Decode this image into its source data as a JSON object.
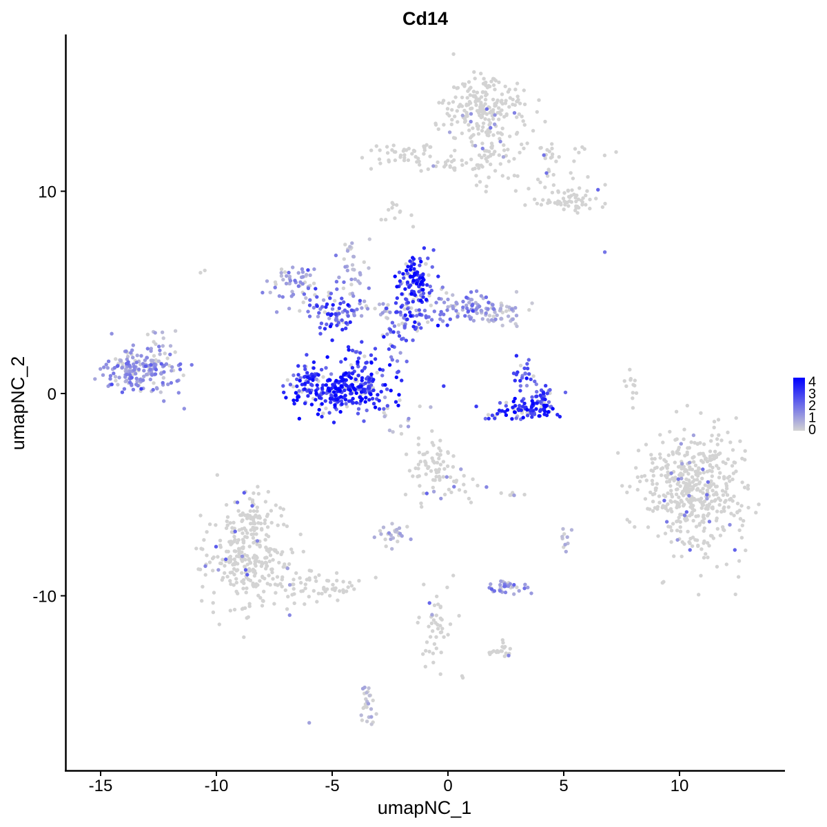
{
  "chart_data": {
    "type": "scatter",
    "title": "Cd14",
    "xlabel": "umapNC_1",
    "ylabel": "umapNC_2",
    "xlim": [
      -16.5,
      14.5
    ],
    "ylim": [
      -18.5,
      17.5
    ],
    "xticks": [
      -15,
      -10,
      -5,
      0,
      5,
      10
    ],
    "xtick_labels": [
      "-15",
      "-10",
      "-5",
      "0",
      "5",
      "10"
    ],
    "yticks": [
      -10,
      0,
      10
    ],
    "ytick_labels": [
      "-10",
      "0",
      "10"
    ],
    "grid": false,
    "legend": {
      "placement": "right",
      "title": "",
      "values": [
        4,
        3,
        2,
        1,
        0
      ],
      "labels": [
        "4",
        "3",
        "2",
        "1",
        "0"
      ]
    },
    "color_scale": {
      "low": "#d3d3d3",
      "high": "#0000ff",
      "min": 0,
      "max": 4.2
    },
    "clusters": [
      {
        "x": 1.7,
        "y": 14.1,
        "sx": 0.9,
        "sy": 0.9,
        "n": 220,
        "expr": 0.05
      },
      {
        "x": 1.8,
        "y": 12.0,
        "sx": 0.3,
        "sy": 0.8,
        "n": 30,
        "expr": 0.05
      },
      {
        "x": -1.6,
        "y": 11.8,
        "sx": 1.0,
        "sy": 0.3,
        "n": 50,
        "expr": 0.1
      },
      {
        "x": 0.3,
        "y": 11.2,
        "sx": 1.0,
        "sy": 0.15,
        "n": 20,
        "expr": 0.1
      },
      {
        "x": 4.3,
        "y": 11.9,
        "sx": 1.3,
        "sy": 0.3,
        "n": 30,
        "expr": 0.15
      },
      {
        "x": 5.2,
        "y": 9.6,
        "sx": 0.8,
        "sy": 0.4,
        "n": 60,
        "expr": 0.15
      },
      {
        "x": 3.3,
        "y": 10.7,
        "sx": 1.0,
        "sy": 0.4,
        "n": 20,
        "expr": 0.1
      },
      {
        "x": -6.8,
        "y": 5.6,
        "sx": 0.5,
        "sy": 0.5,
        "n": 45,
        "expr": 1.2
      },
      {
        "x": -5.6,
        "y": 4.6,
        "sx": 0.7,
        "sy": 0.5,
        "n": 35,
        "expr": 1.6
      },
      {
        "x": -4.8,
        "y": 3.8,
        "sx": 0.4,
        "sy": 0.4,
        "n": 50,
        "expr": 2.6
      },
      {
        "x": -3.5,
        "y": 4.2,
        "sx": 0.7,
        "sy": 0.3,
        "n": 25,
        "expr": 0.8
      },
      {
        "x": -4.2,
        "y": 6.0,
        "sx": 0.5,
        "sy": 0.7,
        "n": 20,
        "expr": 0.9
      },
      {
        "x": -3.8,
        "y": 1.2,
        "sx": 0.3,
        "sy": 0.8,
        "n": 40,
        "expr": 3.0
      },
      {
        "x": -4.5,
        "y": 0.1,
        "sx": 1.1,
        "sy": 0.55,
        "n": 260,
        "expr": 3.3
      },
      {
        "x": -6.0,
        "y": 0.6,
        "sx": 0.3,
        "sy": 0.5,
        "n": 40,
        "expr": 3.0
      },
      {
        "x": -1.3,
        "y": 5.6,
        "sx": 0.45,
        "sy": 0.6,
        "n": 100,
        "expr": 3.3
      },
      {
        "x": -1.5,
        "y": 3.9,
        "sx": 0.6,
        "sy": 0.6,
        "n": 70,
        "expr": 2.4
      },
      {
        "x": -2.3,
        "y": 2.9,
        "sx": 0.3,
        "sy": 0.9,
        "n": 25,
        "expr": 2.0
      },
      {
        "x": 0.7,
        "y": 4.3,
        "sx": 0.8,
        "sy": 0.4,
        "n": 70,
        "expr": 1.4
      },
      {
        "x": 2.2,
        "y": 4.0,
        "sx": 0.5,
        "sy": 0.4,
        "n": 55,
        "expr": 0.5
      },
      {
        "x": 3.4,
        "y": -0.8,
        "sx": 0.8,
        "sy": 0.25,
        "n": 90,
        "expr": 3.3
      },
      {
        "x": 3.3,
        "y": 0.9,
        "sx": 0.3,
        "sy": 0.5,
        "n": 25,
        "expr": 2.6
      },
      {
        "x": 4.1,
        "y": -0.2,
        "sx": 0.3,
        "sy": 0.4,
        "n": 25,
        "expr": 2.8
      },
      {
        "x": -13.3,
        "y": 1.1,
        "sx": 0.8,
        "sy": 0.6,
        "n": 190,
        "expr": 1.2
      },
      {
        "x": -12.4,
        "y": 2.0,
        "sx": 0.4,
        "sy": 0.5,
        "n": 15,
        "expr": 0.5
      },
      {
        "x": 10.6,
        "y": -4.8,
        "sx": 1.1,
        "sy": 1.5,
        "n": 480,
        "expr": 0.06
      },
      {
        "x": -0.6,
        "y": -3.6,
        "sx": 0.5,
        "sy": 0.6,
        "n": 70,
        "expr": 0.15
      },
      {
        "x": 0.8,
        "y": -4.7,
        "sx": 0.4,
        "sy": 0.5,
        "n": 15,
        "expr": 0.1
      },
      {
        "x": -8.6,
        "y": -8.1,
        "sx": 0.9,
        "sy": 1.2,
        "n": 280,
        "expr": 0.25
      },
      {
        "x": -8.5,
        "y": -5.8,
        "sx": 0.4,
        "sy": 0.6,
        "n": 40,
        "expr": 0.2
      },
      {
        "x": -5.6,
        "y": -9.6,
        "sx": 1.0,
        "sy": 0.4,
        "n": 60,
        "expr": 0.15
      },
      {
        "x": -2.3,
        "y": -6.9,
        "sx": 0.3,
        "sy": 0.25,
        "n": 25,
        "expr": 0.5
      },
      {
        "x": 2.5,
        "y": -9.6,
        "sx": 0.4,
        "sy": 0.2,
        "n": 35,
        "expr": 1.2
      },
      {
        "x": -0.5,
        "y": -11.3,
        "sx": 0.3,
        "sy": 0.9,
        "n": 45,
        "expr": 0.15
      },
      {
        "x": 2.3,
        "y": -12.7,
        "sx": 0.3,
        "sy": 0.2,
        "n": 20,
        "expr": 0.1
      },
      {
        "x": -3.5,
        "y": -15.5,
        "sx": 0.15,
        "sy": 0.6,
        "n": 25,
        "expr": 0.3
      },
      {
        "x": -2.1,
        "y": 8.8,
        "sx": 0.3,
        "sy": 0.3,
        "n": 12,
        "expr": 0.15
      },
      {
        "x": -4.2,
        "y": 7.0,
        "sx": 0.15,
        "sy": 0.4,
        "n": 10,
        "expr": 0.3
      },
      {
        "x": 8.0,
        "y": 0.4,
        "sx": 0.15,
        "sy": 0.5,
        "n": 12,
        "expr": 0.2
      },
      {
        "x": 5.1,
        "y": -7.3,
        "sx": 0.15,
        "sy": 0.3,
        "n": 10,
        "expr": 0.5
      },
      {
        "x": -1.9,
        "y": -1.2,
        "sx": 0.6,
        "sy": 0.6,
        "n": 12,
        "expr": 0.6
      },
      {
        "x": 2.8,
        "y": -5.0,
        "sx": 0.3,
        "sy": 0.1,
        "n": 6,
        "expr": 0.1
      },
      {
        "x": -10.6,
        "y": 6.0,
        "sx": 0.1,
        "sy": 0.1,
        "n": 2,
        "expr": 0.1
      },
      {
        "x": 6.8,
        "y": 7.0,
        "sx": 0.05,
        "sy": 0.05,
        "n": 1,
        "expr": 2.5
      },
      {
        "x": -6.0,
        "y": -16.3,
        "sx": 0.05,
        "sy": 0.05,
        "n": 1,
        "expr": 0.5
      },
      {
        "x": 0.6,
        "y": -13.9,
        "sx": 0.1,
        "sy": 0.1,
        "n": 2,
        "expr": 0.1
      }
    ]
  }
}
